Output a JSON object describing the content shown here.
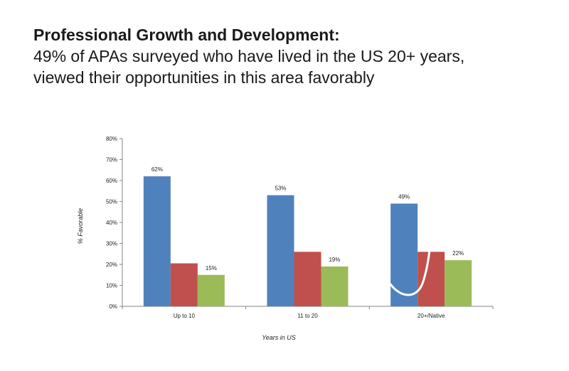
{
  "header": {
    "title": "Professional Growth and Development:",
    "subtitle_line1": "49% of APAs surveyed who have lived in the US 20+ years,",
    "subtitle_line2": "viewed their opportunities in this area favorably"
  },
  "chart_data": {
    "type": "bar",
    "categories": [
      "Up to 10",
      "11 to 20",
      "20+/Native"
    ],
    "series": [
      {
        "values": [
          62,
          53,
          49
        ],
        "labels": [
          "62%",
          "53%",
          "49%"
        ],
        "color": "#4F81BD"
      },
      {
        "values": [
          20.5,
          26,
          26
        ],
        "labels": [
          "",
          "",
          ""
        ],
        "color": "#C0504D"
      },
      {
        "values": [
          15,
          19,
          22
        ],
        "labels": [
          "15%",
          "19%",
          "22%"
        ],
        "color": "#9BBB59"
      }
    ],
    "yticks": [
      "0%",
      "10%",
      "20%",
      "30%",
      "40%",
      "50%",
      "60%",
      "70%",
      "80%"
    ],
    "ylim": [
      0,
      80
    ],
    "xlabel": "Years in US",
    "ylabel": "% Favorable",
    "annotation": "white curved stroke over the 20+/Native group",
    "grid": false,
    "legend": "none"
  }
}
